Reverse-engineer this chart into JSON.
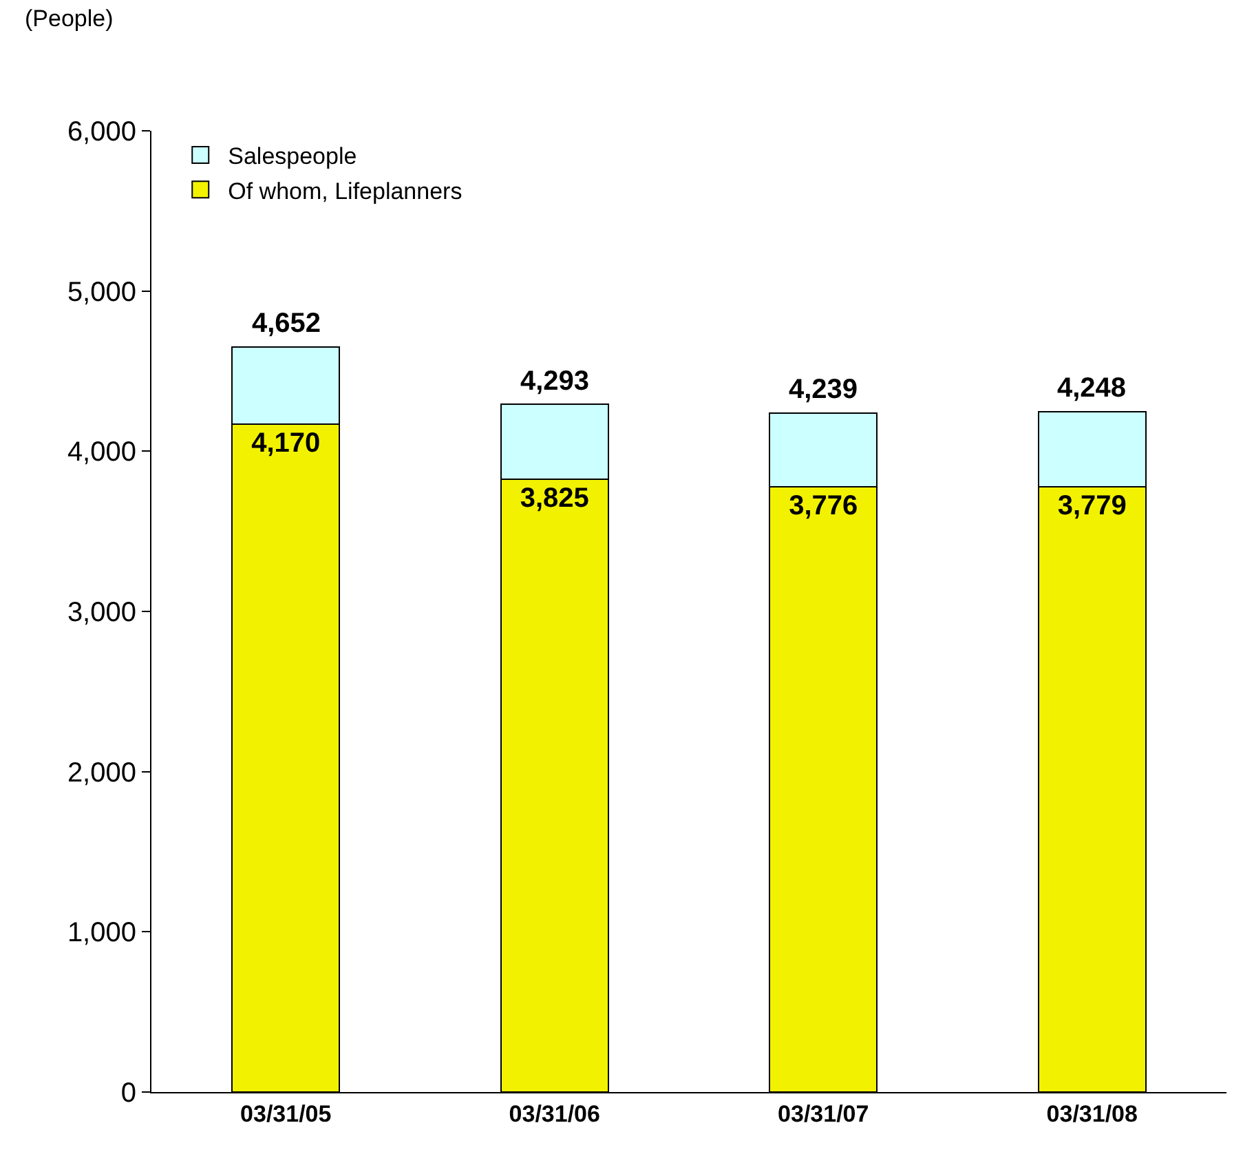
{
  "chart_data": {
    "type": "bar",
    "stacked": true,
    "ylabel": "(People)",
    "categories": [
      "03/31/05",
      "03/31/06",
      "03/31/07",
      "03/31/08"
    ],
    "series": [
      {
        "name": "Of whom, Lifeplanners",
        "color": "#f2f200",
        "values": [
          4170,
          3825,
          3776,
          3779
        ],
        "value_labels": [
          "4,170",
          "3,825",
          "3,776",
          "3,779"
        ]
      },
      {
        "name": "Salespeople",
        "color": "#ccffff",
        "values": [
          482,
          468,
          463,
          469
        ],
        "value_labels": [
          null,
          null,
          null,
          null
        ]
      }
    ],
    "totals": [
      "4,652",
      "4,293",
      "4,239",
      "4,248"
    ],
    "ylim": [
      0,
      6000
    ],
    "yticks": [
      {
        "value": 0,
        "label": "0"
      },
      {
        "value": 1000,
        "label": "1,000"
      },
      {
        "value": 2000,
        "label": "2,000"
      },
      {
        "value": 3000,
        "label": "3,000"
      },
      {
        "value": 4000,
        "label": "4,000"
      },
      {
        "value": 5000,
        "label": "5,000"
      },
      {
        "value": 6000,
        "label": "6,000"
      }
    ],
    "grid": false,
    "legend": "top left"
  }
}
